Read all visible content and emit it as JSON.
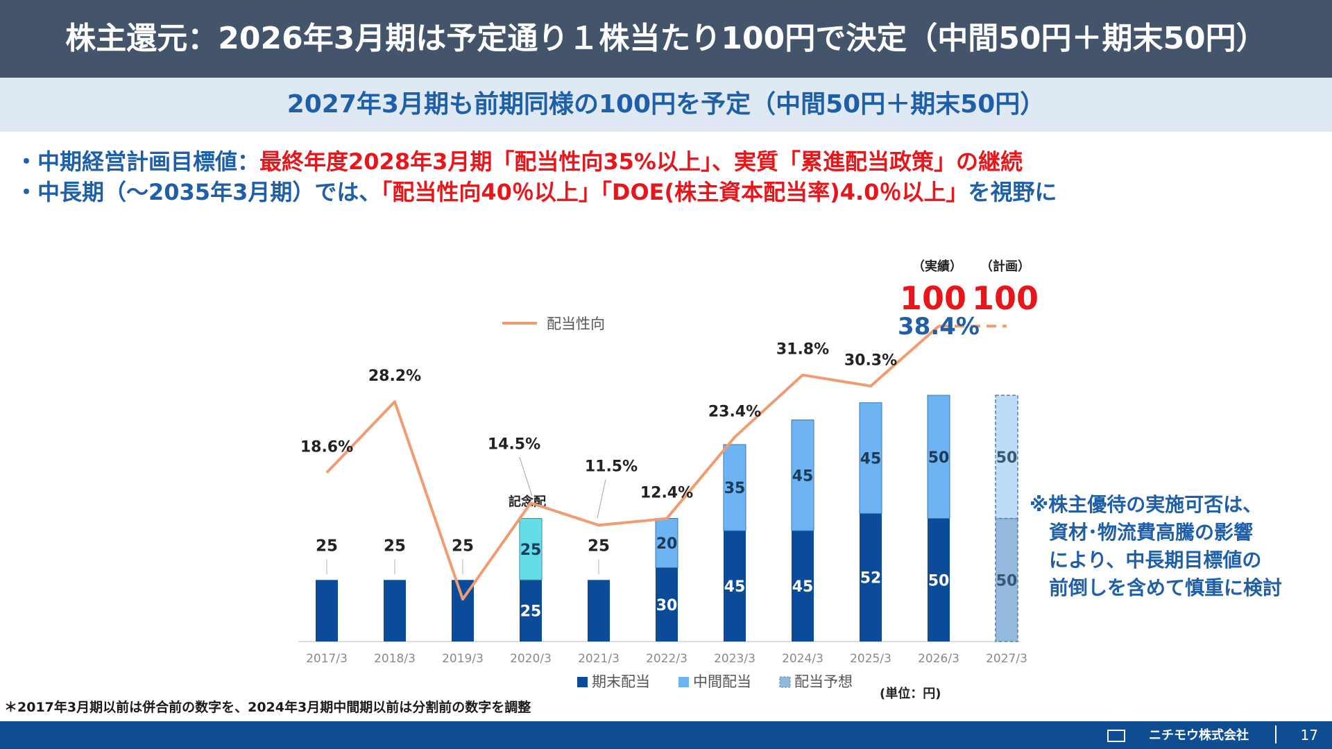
{
  "header": {
    "title": "株主還元：2026年3月期は予定通り１株当たり100円で決定（中間50円＋期末50円）"
  },
  "subheader": {
    "text": "2027年3月期も前期同様の100円を予定（中間50円＋期末50円）"
  },
  "bullets": [
    {
      "lead": "・中期経営計画目標値：",
      "highlight": "最終年度2028年3月期「配当性向35%以上」、実質「累進配当政策」の継続",
      "tail": ""
    },
    {
      "lead": "・中長期（～2035年3月期）では、",
      "highlight": "「配当性向40％以上」「DOE(株主資本配当率)4.0％以上」",
      "tail": "を視野に"
    }
  ],
  "note": {
    "lines": [
      "※株主優待の実施可否は、",
      "　資材･物流費高騰の影響",
      "　により、中長期目標値の",
      "　前倒しを含めて慎重に検討"
    ]
  },
  "footnote": "＊2017年3月期以前は併合前の数字を、2024年3月期中間期以前は分割前の数字を調整",
  "footer": {
    "company": "ニチモウ株式会社",
    "page": "17"
  },
  "colors": {
    "year_end": "#0c4a9a",
    "interim": "#6fb4f2",
    "commemorative": "#66dde6",
    "forecast_interim": "#bcdcf8",
    "forecast_year_end": "#93b9df",
    "payout_line": "#f29b70"
  },
  "chart_data": {
    "type": "bar",
    "stacked": true,
    "categories": [
      "2017/3",
      "2018/3",
      "2019/3",
      "2020/3",
      "2021/3",
      "2022/3",
      "2023/3",
      "2024/3",
      "2025/3",
      "2026/3",
      "2027/3"
    ],
    "series": [
      {
        "name": "期末配当",
        "values": [
          25,
          25,
          25,
          25,
          25,
          30,
          45,
          45,
          52,
          50,
          null
        ]
      },
      {
        "name": "中間配当",
        "values": [
          null,
          null,
          null,
          null,
          null,
          20,
          35,
          45,
          45,
          50,
          null
        ]
      },
      {
        "name": "配当予想",
        "values": [
          null,
          null,
          null,
          null,
          null,
          null,
          null,
          null,
          null,
          null,
          100
        ]
      }
    ],
    "forecast_breakdown": {
      "interim": 50,
      "year_end": 50
    },
    "commemorative": {
      "category": "2020/3",
      "value": 25,
      "label": "記念配"
    },
    "bar_labels": [
      {
        "category": "2017/3",
        "total_label": "25"
      },
      {
        "category": "2018/3",
        "total_label": "25"
      },
      {
        "category": "2019/3",
        "total_label": "25"
      },
      {
        "category": "2021/3",
        "total_label": "25"
      }
    ],
    "line_series": {
      "name": "配当性向",
      "values": [
        18.6,
        28.2,
        1.5,
        14.5,
        11.5,
        12.4,
        23.4,
        31.8,
        30.3,
        38.4,
        38.4
      ],
      "labels": [
        "18.6%",
        "28.2%",
        "",
        "14.5%",
        "11.5%",
        "12.4%",
        "23.4%",
        "31.8%",
        "30.3%",
        "38.4%",
        ""
      ],
      "dashed_from_category": "2026/3"
    },
    "y_max": 100,
    "annotations": {
      "actual_label": "（実績）",
      "plan_label": "（計画）",
      "actual_total": "100",
      "plan_total": "100"
    },
    "unit_label": "(単位：円)",
    "legend_position": "bottom"
  }
}
